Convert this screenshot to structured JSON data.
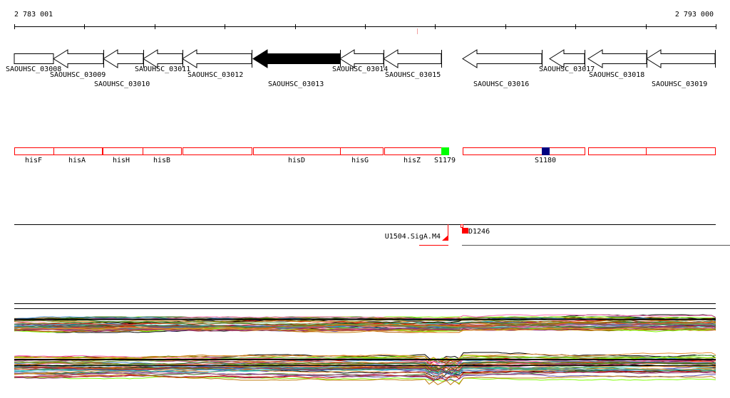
{
  "ruler": {
    "start_label": "2 783 001",
    "end_label": "2 793 000"
  },
  "genes": [
    {
      "id": "SAOUHSC_03008",
      "filled": false
    },
    {
      "id": "SAOUHSC_03009",
      "filled": false
    },
    {
      "id": "SAOUHSC_03010",
      "filled": false
    },
    {
      "id": "SAOUHSC_03011",
      "filled": false
    },
    {
      "id": "SAOUHSC_03012",
      "filled": false
    },
    {
      "id": "SAOUHSC_03013",
      "filled": true
    },
    {
      "id": "SAOUHSC_03014",
      "filled": false
    },
    {
      "id": "SAOUHSC_03015",
      "filled": false
    },
    {
      "id": "SAOUHSC_03016",
      "filled": false
    },
    {
      "id": "SAOUHSC_03017",
      "filled": false
    },
    {
      "id": "SAOUHSC_03018",
      "filled": false
    },
    {
      "id": "SAOUHSC_03019",
      "filled": false
    }
  ],
  "features": {
    "labels": [
      "hisF",
      "hisA",
      "hisH",
      "hisB",
      "hisD",
      "hisG",
      "hisZ",
      "S1179",
      "S1180"
    ],
    "colors": {
      "outline": "#ff0000",
      "S1179": "#00ff00",
      "S1180": "#000080"
    }
  },
  "regulatory": {
    "left_label": "U1504.SigA.M4",
    "right_label": "D1246",
    "color": "#ff0000"
  }
}
